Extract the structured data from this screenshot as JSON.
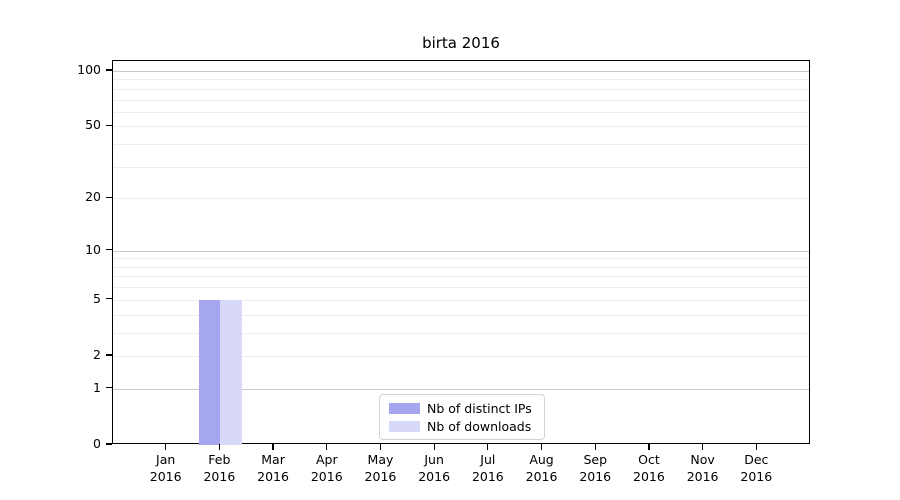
{
  "chart_data": {
    "type": "bar",
    "title": "birta 2016",
    "categories": [
      "Jan 2016",
      "Feb 2016",
      "Mar 2016",
      "Apr 2016",
      "May 2016",
      "Jun 2016",
      "Jul 2016",
      "Aug 2016",
      "Sep 2016",
      "Oct 2016",
      "Nov 2016",
      "Dec 2016"
    ],
    "series": [
      {
        "name": "Nb of distinct IPs",
        "color": "#a5a5f0",
        "values": [
          0,
          5,
          0,
          0,
          0,
          0,
          0,
          0,
          0,
          0,
          0,
          0
        ]
      },
      {
        "name": "Nb of downloads",
        "color": "#d8d8f8",
        "values": [
          0,
          5,
          0,
          0,
          0,
          0,
          0,
          0,
          0,
          0,
          0,
          0
        ]
      }
    ],
    "xlabel": "",
    "ylabel": "",
    "y_axis": {
      "scale": "log1p",
      "ylim": [
        0,
        100
      ],
      "ticks": [
        0,
        1,
        2,
        5,
        10,
        20,
        50,
        100
      ],
      "major_gridlines": [
        1,
        10,
        100
      ],
      "minor_gridlines": [
        2,
        3,
        4,
        5,
        6,
        7,
        8,
        9,
        20,
        30,
        40,
        50,
        60,
        70,
        80,
        90
      ],
      "grid": "on"
    },
    "legend": {
      "position": "lower center",
      "entries": [
        "Nb of distinct IPs",
        "Nb of downloads"
      ]
    },
    "colors": {
      "major_grid": "#c9c9c9",
      "minor_grid": "#ededed",
      "axis": "#000000",
      "background": "#ffffff"
    }
  }
}
